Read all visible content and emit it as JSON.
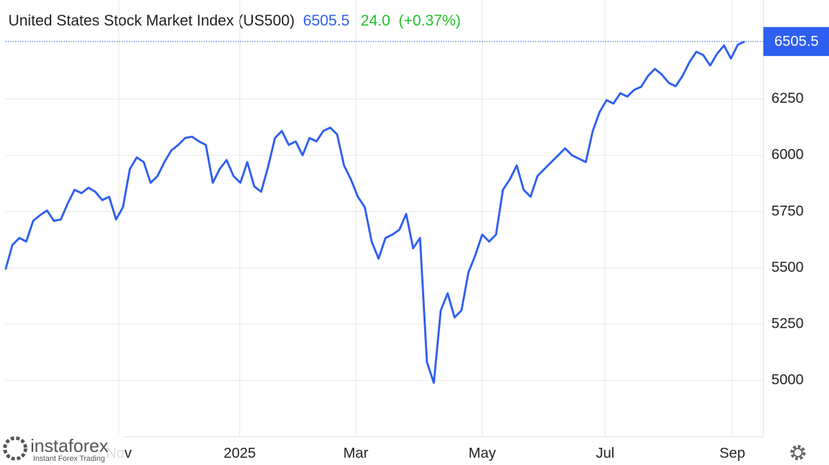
{
  "header": {
    "title": "United States Stock Market Index (US500)",
    "price": "6505.5",
    "change": "24.0",
    "change_pct": "(+0.37%)"
  },
  "watermark": {
    "brand": "instaforex",
    "tagline": "Instant Forex Trading"
  },
  "chart_data": {
    "type": "line",
    "series": [
      {
        "name": "US500",
        "color": "#2f5ff0",
        "values": [
          5493,
          5602,
          5633,
          5617,
          5709,
          5734,
          5755,
          5709,
          5715,
          5786,
          5847,
          5832,
          5856,
          5838,
          5801,
          5816,
          5715,
          5770,
          5939,
          5991,
          5970,
          5878,
          5908,
          5970,
          6022,
          6046,
          6077,
          6083,
          6062,
          6046,
          5878,
          5939,
          5979,
          5908,
          5878,
          5970,
          5862,
          5838,
          5948,
          6077,
          6108,
          6046,
          6062,
          6000,
          6077,
          6062,
          6108,
          6123,
          6093,
          5955,
          5893,
          5816,
          5770,
          5617,
          5541,
          5633,
          5648,
          5669,
          5740,
          5587,
          5633,
          5081,
          4989,
          5311,
          5387,
          5280,
          5311,
          5479,
          5556,
          5648,
          5617,
          5648,
          5847,
          5893,
          5955,
          5847,
          5816,
          5908,
          5939,
          5970,
          6000,
          6031,
          6000,
          5985,
          5970,
          6108,
          6193,
          6245,
          6230,
          6276,
          6261,
          6291,
          6304,
          6353,
          6384,
          6359,
          6322,
          6307,
          6353,
          6414,
          6460,
          6445,
          6399,
          6451,
          6488,
          6430,
          6491,
          6505.5
        ]
      }
    ],
    "xlim": [
      0,
      109.7
    ],
    "xticks": [
      {
        "value": 16.4,
        "label": "Nov"
      },
      {
        "value": 33.9,
        "label": "2025"
      },
      {
        "value": 50.7,
        "label": "Mar"
      },
      {
        "value": 69,
        "label": "May"
      },
      {
        "value": 86.8,
        "label": "Jul"
      },
      {
        "value": 105.2,
        "label": "Sep"
      }
    ],
    "ylim": [
      4750,
      6690
    ],
    "yticks": [
      5000,
      5250,
      5500,
      5750,
      6000,
      6250
    ],
    "grid": true
  }
}
